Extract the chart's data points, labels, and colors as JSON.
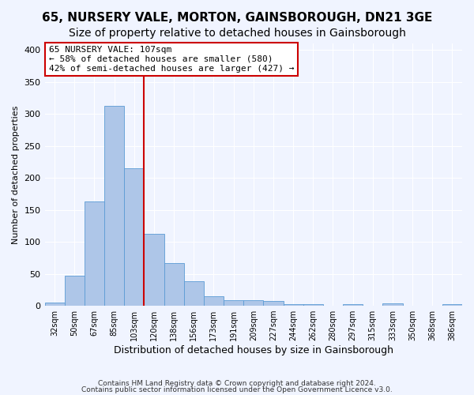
{
  "title1": "65, NURSERY VALE, MORTON, GAINSBOROUGH, DN21 3GE",
  "title2": "Size of property relative to detached houses in Gainsborough",
  "xlabel": "Distribution of detached houses by size in Gainsborough",
  "ylabel": "Number of detached properties",
  "categories": [
    "32sqm",
    "50sqm",
    "67sqm",
    "85sqm",
    "103sqm",
    "120sqm",
    "138sqm",
    "156sqm",
    "173sqm",
    "191sqm",
    "209sqm",
    "227sqm",
    "244sqm",
    "262sqm",
    "280sqm",
    "297sqm",
    "315sqm",
    "333sqm",
    "350sqm",
    "368sqm",
    "386sqm"
  ],
  "values": [
    5,
    47,
    163,
    313,
    215,
    113,
    67,
    38,
    15,
    9,
    9,
    7,
    3,
    2,
    0,
    3,
    0,
    4,
    0,
    0,
    3
  ],
  "bar_color": "#aec6e8",
  "bar_edge_color": "#5b9bd5",
  "property_line_x": 4.5,
  "property_label": "65 NURSERY VALE: 107sqm",
  "annotation_line1": "← 58% of detached houses are smaller (580)",
  "annotation_line2": "42% of semi-detached houses are larger (427) →",
  "annotation_box_color": "#ffffff",
  "annotation_box_edge": "#cc0000",
  "red_line_color": "#cc0000",
  "ylim": [
    0,
    410
  ],
  "yticks": [
    0,
    50,
    100,
    150,
    200,
    250,
    300,
    350,
    400
  ],
  "footnote1": "Contains HM Land Registry data © Crown copyright and database right 2024.",
  "footnote2": "Contains public sector information licensed under the Open Government Licence v3.0.",
  "background_color": "#f0f4ff",
  "grid_color": "#ffffff",
  "title1_fontsize": 11,
  "title2_fontsize": 10
}
